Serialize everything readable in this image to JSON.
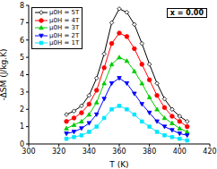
{
  "chart_data": {
    "type": "line",
    "x_label": "T (K)",
    "y_label": "-ΔSM (J/kg.K)",
    "annotation": "x = 0.00",
    "legend": "upper left",
    "grid": false,
    "xlim": [
      300,
      420
    ],
    "xticks": [
      300,
      320,
      340,
      360,
      380,
      400,
      420
    ],
    "ylim": [
      0,
      8
    ],
    "yticks": [
      0,
      1,
      2,
      3,
      4,
      5,
      6,
      7,
      8
    ],
    "x": [
      325,
      330,
      335,
      340,
      345,
      350,
      355,
      360,
      365,
      370,
      375,
      380,
      385,
      390,
      395,
      400,
      405
    ],
    "series": [
      {
        "name": "μ0H = 5T",
        "color": "#000000",
        "marker": "diamond",
        "values": [
          1.7,
          1.9,
          2.2,
          2.8,
          3.8,
          5.2,
          7.0,
          7.8,
          7.6,
          6.9,
          5.8,
          4.6,
          3.5,
          2.6,
          2.0,
          1.6,
          1.3
        ]
      },
      {
        "name": "μ0H = 4T",
        "color": "#ff0000",
        "marker": "circle",
        "values": [
          1.3,
          1.5,
          1.8,
          2.3,
          3.1,
          4.4,
          5.8,
          6.4,
          6.2,
          5.5,
          4.6,
          3.7,
          2.8,
          2.1,
          1.6,
          1.3,
          1.0
        ]
      },
      {
        "name": "μ0H = 3T",
        "color": "#00cc00",
        "marker": "triangle",
        "values": [
          0.9,
          1.1,
          1.3,
          1.7,
          2.4,
          3.5,
          4.6,
          5.0,
          4.8,
          4.2,
          3.5,
          2.7,
          2.0,
          1.5,
          1.2,
          0.9,
          0.7
        ]
      },
      {
        "name": "μ0H = 2T",
        "color": "#0000ff",
        "marker": "triangle-down",
        "values": [
          0.6,
          0.7,
          0.9,
          1.2,
          1.7,
          2.6,
          3.5,
          3.8,
          3.5,
          2.9,
          2.3,
          1.8,
          1.3,
          1.0,
          0.8,
          0.6,
          0.5
        ]
      },
      {
        "name": "μ0H = 1T",
        "color": "#00e5ff",
        "marker": "square",
        "values": [
          0.3,
          0.4,
          0.5,
          0.7,
          1.0,
          1.5,
          2.0,
          2.2,
          2.0,
          1.7,
          1.3,
          1.0,
          0.7,
          0.5,
          0.4,
          0.3,
          0.2
        ]
      }
    ]
  }
}
